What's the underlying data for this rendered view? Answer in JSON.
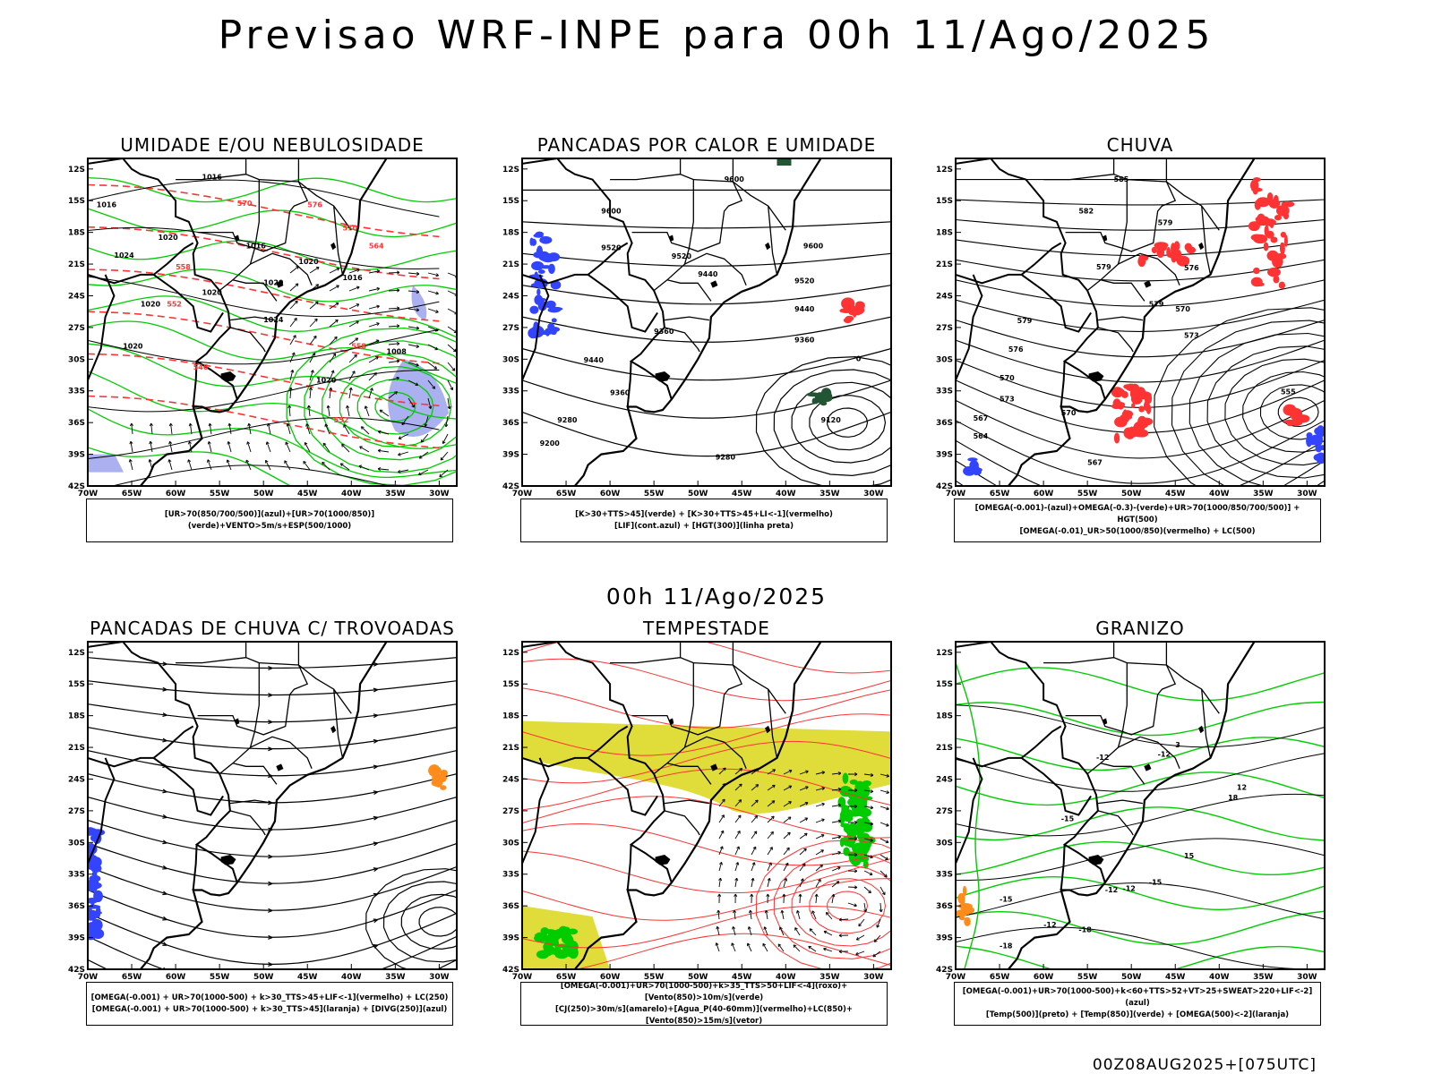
{
  "header": {
    "title": "Previsao WRF-INPE  para 00h 11/Ago/2025",
    "subtitle": "00h 11/Ago/2025",
    "footer": "00Z08AUG2025+[075UTC]"
  },
  "axes": {
    "lat_labels": [
      "12S",
      "15S",
      "18S",
      "21S",
      "24S",
      "27S",
      "30S",
      "33S",
      "36S",
      "39S",
      "42S"
    ],
    "lon_labels": [
      "70W",
      "65W",
      "60W",
      "55W",
      "50W",
      "45W",
      "40W",
      "35W",
      "30W"
    ]
  },
  "colors": {
    "red": "#ff3333",
    "green": "#00cc00",
    "blue": "#3344ff",
    "lavender": "#aab0f0",
    "yellow": "#e0dc3a",
    "orange": "#ff8c1a",
    "black": "#000000"
  },
  "panels": [
    {
      "title": "UMIDADE E/OU NEBULOSIDADE",
      "legend": [
        "[UR>70(850/700/500)](azul)+[UR>70(1000/850)](verde)+VENTO>5m/s+ESP(500/1000)"
      ],
      "labels": [
        "1016",
        "1016",
        "1020",
        "1024",
        "1020",
        "1020",
        "1016",
        "1020",
        "1016",
        "1008",
        "1020",
        "1024",
        "1020",
        "1020",
        "1016",
        "570",
        "576",
        "570",
        "564",
        "558",
        "552",
        "546",
        "552",
        "558"
      ]
    },
    {
      "title": "PANCADAS POR CALOR E UMIDADE",
      "legend": [
        "[K>30+TTS>45](verde) + [K>30+TTS>45+LI<-1](vermelho)",
        "[LIF](cont.azul) + [HGT(300)](linha preta)"
      ],
      "labels": [
        "9600",
        "9600",
        "9520",
        "9600",
        "9520",
        "9520",
        "9440",
        "9440",
        "9360",
        "9440",
        "9360",
        "9360",
        "9280",
        "9200",
        "9280",
        "9120",
        "0"
      ]
    },
    {
      "title": "CHUVA",
      "legend": [
        "[OMEGA(-0.001)-(azul)+OMEGA(-0.3)-(verde)+UR>70(1000/850/700/500)] + HGT(500)",
        "[OMEGA(-0.01)_UR>50(1000/850)(vermelho) + LC(500)"
      ],
      "labels": [
        "585",
        "582",
        "579",
        "579",
        "576",
        "570",
        "573",
        "579",
        "576",
        "570",
        "573",
        "567",
        "564",
        "567",
        "555",
        "570",
        "579"
      ]
    },
    {
      "title": "PANCADAS DE CHUVA C/ TROVOADAS",
      "legend": [
        "[OMEGA(-0.001) + UR>70(1000-500) + k>30_TTS>45+LIF<-1](vermelho) + LC(250)",
        "[OMEGA(-0.001) + UR>70(1000-500) + k>30_TTS>45](laranja) + [DIVG(250)](azul)"
      ],
      "labels": []
    },
    {
      "title": "TEMPESTADE",
      "legend": [
        "[OMEGA(-0.001)+UR>70(1000-500)+k>35_TTS>50+LIF<-4](roxo)+[Vento(850)>10m/s](verde)",
        "[CJ(250)>30m/s](amarelo)+[Agua_P(40-60mm)](vermelho)+LC(850)+[Vento(850)>15m/s](vetor)"
      ],
      "labels": []
    },
    {
      "title": "GRANIZO",
      "legend": [
        "[OMEGA(-0.001)+UR>70(1000-500)+k<60+TTS>52+VT>25+SWEAT>220+LIF<-2](azul)",
        "[Temp(500)](preto) + [Temp(850)](verde) + [OMEGA(500)<-2](laranja)"
      ],
      "labels": [
        "-12",
        "-12",
        "-12",
        "-12",
        "-15",
        "-15",
        "-18",
        "-12",
        "-15",
        "-18",
        "3",
        "12",
        "15",
        "18"
      ]
    }
  ]
}
